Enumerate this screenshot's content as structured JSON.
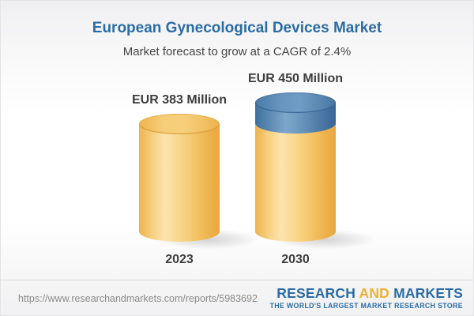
{
  "header": {
    "title": "European Gynecological Devices Market",
    "subtitle": "Market forecast to grow at a CAGR of 2.4%"
  },
  "chart_data": {
    "type": "bar",
    "variant": "3d-cylinder",
    "title": "European Gynecological Devices Market",
    "subtitle": "Market forecast to grow at a CAGR of 2.4%",
    "cagr_percent": 2.4,
    "unit": "EUR Million",
    "categories": [
      "2023",
      "2030"
    ],
    "values": [
      383,
      450
    ],
    "bar_labels": [
      "EUR 383 Million",
      "EUR 450 Million"
    ],
    "legend": false,
    "axes": false,
    "colors": {
      "base_cylinder": "#F5C96F",
      "growth_segment": "#5D8CB7",
      "label_text": "#3D3D3D",
      "title_blue": "#2A6CA5"
    }
  },
  "footer": {
    "url": "https://www.researchandmarkets.com/reports/5983692",
    "logo": {
      "word_research": "RESEARCH",
      "word_and": "AND",
      "word_markets": "MARKETS",
      "tagline": "THE WORLD'S LARGEST MARKET RESEARCH STORE"
    }
  }
}
